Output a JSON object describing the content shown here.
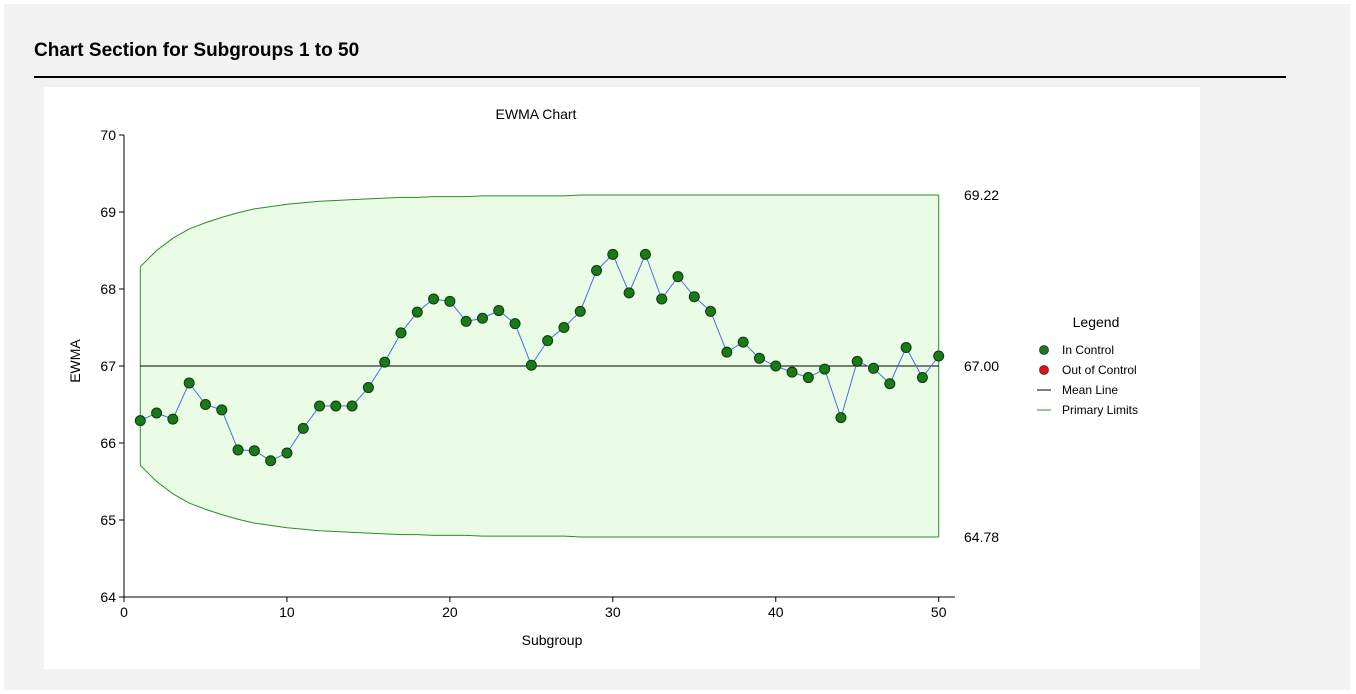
{
  "section": {
    "title": "Chart Section for Subgroups 1 to 50"
  },
  "chart_data": {
    "type": "line",
    "title": "EWMA Chart",
    "xlabel": "Subgroup",
    "ylabel": "EWMA",
    "xlim": [
      0,
      51
    ],
    "ylim": [
      64,
      70
    ],
    "xticks": [
      0,
      10,
      20,
      30,
      40,
      50
    ],
    "yticks": [
      64,
      65,
      66,
      67,
      68,
      69,
      70
    ],
    "grid": false,
    "legend_position": "right",
    "mean": 67.0,
    "mean_label": "67.00",
    "ucl_label": "69.22",
    "lcl_label": "64.78",
    "upper_limit": [
      68.29,
      68.5,
      68.66,
      68.78,
      68.86,
      68.93,
      68.99,
      69.04,
      69.07,
      69.1,
      69.12,
      69.14,
      69.15,
      69.16,
      69.17,
      69.18,
      69.19,
      69.19,
      69.2,
      69.2,
      69.2,
      69.21,
      69.21,
      69.21,
      69.21,
      69.21,
      69.21,
      69.22,
      69.22,
      69.22,
      69.22,
      69.22,
      69.22,
      69.22,
      69.22,
      69.22,
      69.22,
      69.22,
      69.22,
      69.22,
      69.22,
      69.22,
      69.22,
      69.22,
      69.22,
      69.22,
      69.22,
      69.22,
      69.22,
      69.22
    ],
    "lower_limit": [
      65.71,
      65.5,
      65.34,
      65.22,
      65.14,
      65.07,
      65.01,
      64.96,
      64.93,
      64.9,
      64.88,
      64.86,
      64.85,
      64.84,
      64.83,
      64.82,
      64.81,
      64.81,
      64.8,
      64.8,
      64.8,
      64.79,
      64.79,
      64.79,
      64.79,
      64.79,
      64.79,
      64.78,
      64.78,
      64.78,
      64.78,
      64.78,
      64.78,
      64.78,
      64.78,
      64.78,
      64.78,
      64.78,
      64.78,
      64.78,
      64.78,
      64.78,
      64.78,
      64.78,
      64.78,
      64.78,
      64.78,
      64.78,
      64.78,
      64.78
    ],
    "series": [
      {
        "name": "In Control",
        "x": [
          1,
          2,
          3,
          4,
          5,
          6,
          7,
          8,
          9,
          10,
          11,
          12,
          13,
          14,
          15,
          16,
          17,
          18,
          19,
          20,
          21,
          22,
          23,
          24,
          25,
          26,
          27,
          28,
          29,
          30,
          31,
          32,
          33,
          34,
          35,
          36,
          37,
          38,
          39,
          40,
          41,
          42,
          43,
          44,
          45,
          46,
          47,
          48,
          49,
          50
        ],
        "values": [
          66.29,
          66.39,
          66.31,
          66.78,
          66.5,
          66.43,
          65.91,
          65.9,
          65.77,
          65.87,
          66.19,
          66.48,
          66.48,
          66.48,
          66.72,
          67.05,
          67.43,
          67.7,
          67.87,
          67.84,
          67.58,
          67.62,
          67.72,
          67.55,
          67.01,
          67.33,
          67.5,
          67.71,
          68.24,
          68.45,
          67.95,
          68.45,
          67.87,
          68.16,
          67.9,
          67.71,
          67.18,
          67.31,
          67.1,
          67.0,
          66.92,
          66.85,
          66.96,
          66.33,
          67.06,
          66.97,
          66.77,
          67.24,
          66.85,
          67.13
        ]
      }
    ],
    "legend": {
      "title": "Legend",
      "items": [
        {
          "label": "In Control",
          "symbol": "dot",
          "color": "#1a7a1a"
        },
        {
          "label": "Out of Control",
          "symbol": "dot",
          "color": "#e01010"
        },
        {
          "label": "Mean Line",
          "symbol": "line",
          "color": "#000000"
        },
        {
          "label": "Primary Limits",
          "symbol": "line",
          "color": "#2e8b2e"
        }
      ]
    },
    "colors": {
      "point": "#1a7a1a",
      "point_stroke": "#0a3a0a",
      "connector": "#4a6ee0",
      "limit_line": "#2e8b2e",
      "limit_fill": "#eafbe6",
      "mean_line": "#000000"
    }
  }
}
